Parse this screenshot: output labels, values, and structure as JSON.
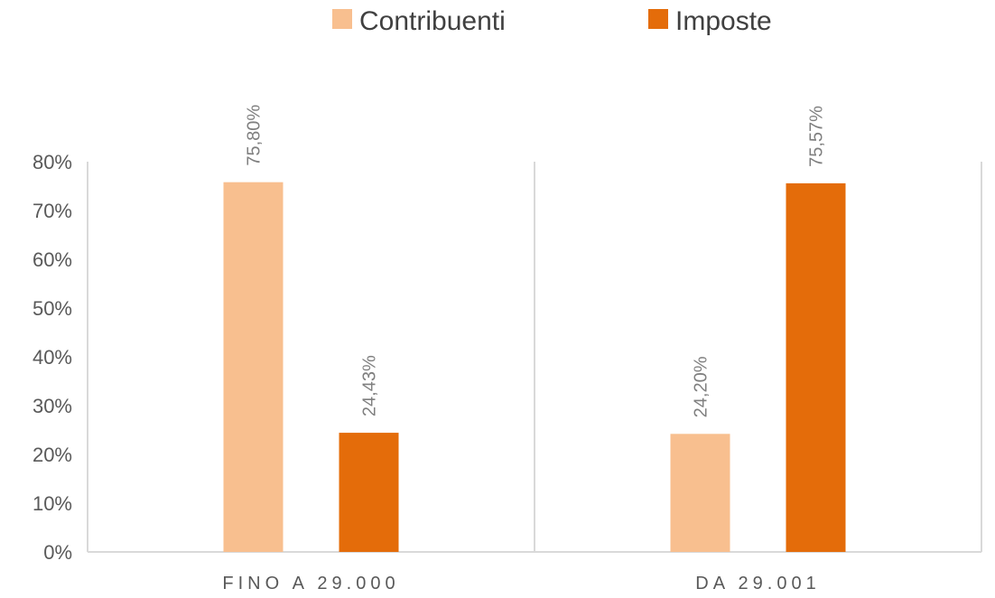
{
  "chart_data": {
    "type": "bar",
    "categories": [
      "FINO A 29.000",
      "DA 29.001"
    ],
    "series": [
      {
        "name": "Contribuenti",
        "color": "#f8bf8f",
        "values": [
          75.8,
          24.2
        ],
        "labels": [
          "75,80%",
          "24,20%"
        ]
      },
      {
        "name": "Imposte",
        "color": "#e46c0a",
        "values": [
          24.43,
          75.57
        ],
        "labels": [
          "24,43%",
          "75,57%"
        ]
      }
    ],
    "yticks": [
      0,
      10,
      20,
      30,
      40,
      50,
      60,
      70,
      80
    ],
    "ytick_labels": [
      "0%",
      "10%",
      "20%",
      "30%",
      "40%",
      "50%",
      "60%",
      "70%",
      "80%"
    ],
    "ylim": [
      0,
      80
    ],
    "title": "",
    "xlabel": "",
    "ylabel": "",
    "legend_position": "top",
    "grid": false
  }
}
